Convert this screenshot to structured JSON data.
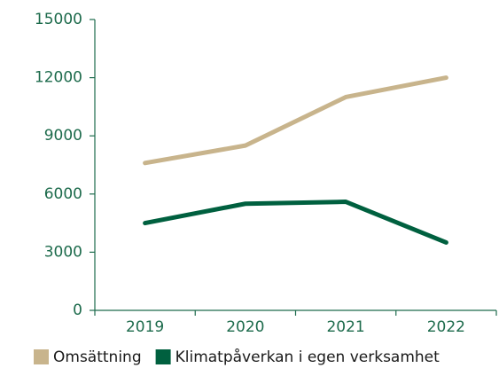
{
  "chart_data": {
    "type": "line",
    "categories": [
      "2019",
      "2020",
      "2021",
      "2022"
    ],
    "series": [
      {
        "name": "Omsättning",
        "color": "#c8b48c",
        "values": [
          7600,
          8500,
          11000,
          12000
        ]
      },
      {
        "name": "Klimatpåverkan i egen verksamhet",
        "color": "#00603f",
        "values": [
          4500,
          5500,
          5600,
          3500
        ]
      }
    ],
    "ylim": [
      0,
      15000
    ],
    "yticks": [
      0,
      3000,
      6000,
      9000,
      12000,
      15000
    ],
    "legend": "bottom"
  }
}
